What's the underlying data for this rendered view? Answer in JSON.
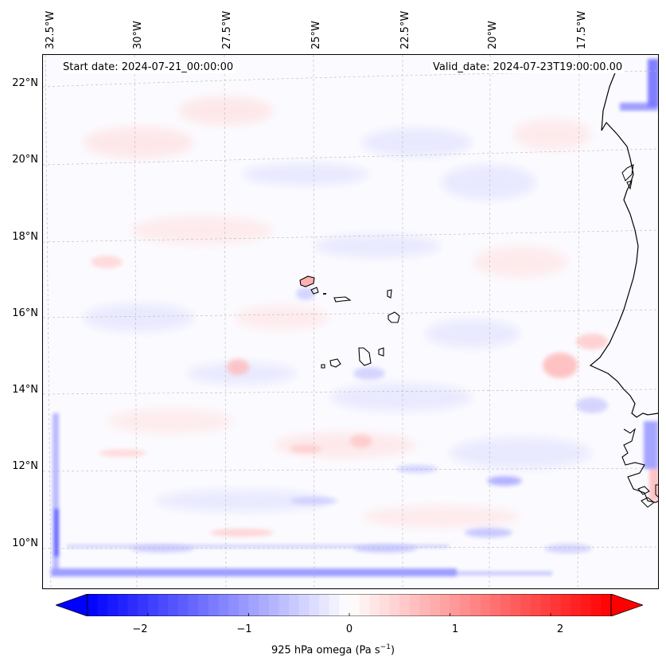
{
  "info": {
    "start": "Start date: 2024-07-21_00:00:00",
    "valid": "Valid_date: 2024-07-23T19:00:00.00"
  },
  "lon_labels": [
    "32.5°W",
    "30°W",
    "27.5°W",
    "25°W",
    "22.5°W",
    "20°W",
    "17.5°W"
  ],
  "lat_labels": [
    "22°N",
    "20°N",
    "18°N",
    "16°N",
    "14°N",
    "12°N",
    "10°N"
  ],
  "colorbar": {
    "label_prefix": "925 hPa omega (Pa s",
    "label_exp": "−1",
    "label_suffix": ")",
    "ticks": [
      "−2",
      "−1",
      "0",
      "1",
      "2"
    ],
    "min": -2.6,
    "max": 2.6,
    "cmap": "bwr",
    "low_color": "#0000ff",
    "mid_color": "#ffffff",
    "high_color": "#ff0000"
  },
  "map": {
    "projection": "Lambert Conformal",
    "lon_range": [
      -33,
      -16.2
    ],
    "lat_range": [
      9,
      22.7
    ],
    "coastline_color": "#000000",
    "gridline_style": "dashed grey",
    "field": "925 hPa omega"
  }
}
